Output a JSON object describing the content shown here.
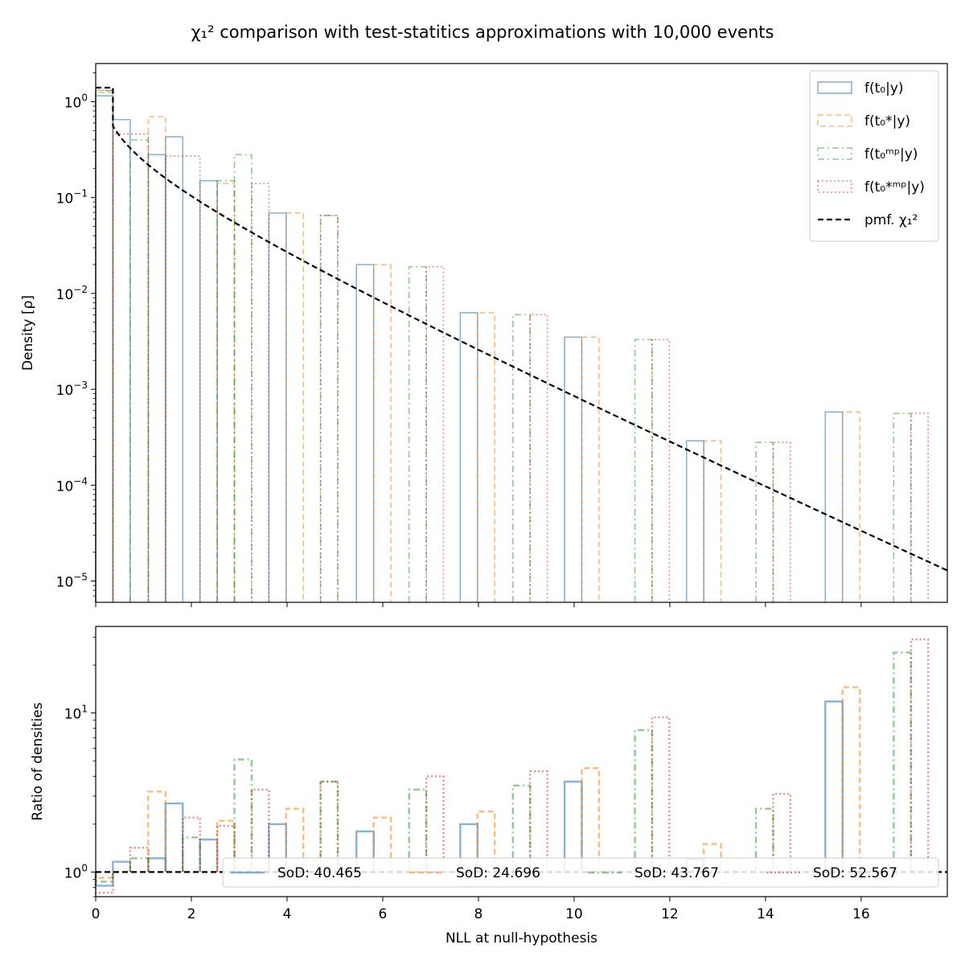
{
  "title": "χ₁² comparison with test-statitics approximations with 10,000 events",
  "colors": {
    "t0": "#1f77b4",
    "t0s": "#ff7f0e",
    "t0mp": "#2ca02c",
    "t0smp": "#d62728",
    "chi2": "#000000"
  },
  "chart_data": [
    {
      "type": "bar",
      "panel": "top",
      "ylabel": "Density [ρ]",
      "yscale": "log",
      "ylim": [
        6e-06,
        2.5
      ],
      "xlim": [
        0,
        17.8
      ],
      "yticks": [
        {
          "v": 1,
          "m": "0"
        },
        {
          "v": 0.1,
          "m": "−1"
        },
        {
          "v": 0.01,
          "m": "−2"
        },
        {
          "v": 0.001,
          "m": "−3"
        },
        {
          "v": 0.0001,
          "m": "−4"
        },
        {
          "v": 1e-05,
          "m": "−5"
        }
      ],
      "legend": {
        "location": "upper right",
        "entries": [
          {
            "key": "t0",
            "label": "f(t₀|y)"
          },
          {
            "key": "t0s",
            "label": "f(t₀*|y)"
          },
          {
            "key": "t0mp",
            "label": "f(t₀ᵐᵖ|y)"
          },
          {
            "key": "t0smp",
            "label": "f(t₀*ᵐᵖ|y)"
          },
          {
            "key": "chi2",
            "label": "pmf. χ₁²"
          }
        ]
      },
      "series": [
        {
          "key": "t0",
          "style": "solid",
          "bars": [
            [
              0,
              0.36,
              1.15
            ],
            [
              0.36,
              0.72,
              0.65
            ],
            [
              1.1,
              1.46,
              0.28
            ],
            [
              1.46,
              1.82,
              0.43
            ],
            [
              2.18,
              2.54,
              0.15
            ],
            [
              3.62,
              3.98,
              0.069
            ],
            [
              5.45,
              5.81,
              0.02
            ],
            [
              7.62,
              7.98,
              0.0063
            ],
            [
              9.8,
              10.16,
              0.0035
            ],
            [
              12.35,
              12.71,
              0.00029
            ],
            [
              15.25,
              15.61,
              0.00058
            ]
          ]
        },
        {
          "key": "t0s",
          "style": "dashed",
          "bars": [
            [
              0,
              0.36,
              1.25
            ],
            [
              1.1,
              1.46,
              0.7
            ],
            [
              2.54,
              2.9,
              0.14
            ],
            [
              3.98,
              4.34,
              0.069
            ],
            [
              5.81,
              6.17,
              0.02
            ],
            [
              7.98,
              8.34,
              0.0063
            ],
            [
              10.16,
              10.52,
              0.0035
            ],
            [
              12.71,
              13.07,
              0.00029
            ],
            [
              15.61,
              15.97,
              0.00058
            ]
          ]
        },
        {
          "key": "t0mp",
          "style": "dashdot",
          "bars": [
            [
              0,
              0.36,
              1.3
            ],
            [
              0.72,
              1.1,
              0.4
            ],
            [
              2.54,
              2.9,
              0.15
            ],
            [
              2.9,
              3.26,
              0.28
            ],
            [
              4.7,
              5.06,
              0.065
            ],
            [
              6.55,
              6.91,
              0.019
            ],
            [
              8.72,
              9.08,
              0.006
            ],
            [
              11.27,
              11.63,
              0.0033
            ],
            [
              13.8,
              14.16,
              0.00028
            ],
            [
              16.68,
              17.04,
              0.00056
            ]
          ]
        },
        {
          "key": "t0smp",
          "style": "dotted",
          "bars": [
            [
              0,
              0.36,
              1.32
            ],
            [
              0.36,
              1.1,
              0.46
            ],
            [
              1.46,
              2.18,
              0.27
            ],
            [
              3.26,
              3.62,
              0.14
            ],
            [
              4.7,
              5.06,
              0.065
            ],
            [
              6.91,
              7.27,
              0.019
            ],
            [
              9.08,
              9.44,
              0.006
            ],
            [
              11.63,
              11.99,
              0.0033
            ],
            [
              14.16,
              14.52,
              0.00028
            ],
            [
              17.04,
              17.4,
              0.00056
            ]
          ]
        }
      ]
    },
    {
      "type": "bar",
      "panel": "bottom",
      "xlabel": "NLL at null-hypothesis",
      "ylabel": "Ratio of densities",
      "yscale": "log",
      "ylim": [
        0.7,
        35
      ],
      "xlim": [
        0,
        17.8
      ],
      "xticks": [
        0,
        2,
        4,
        6,
        8,
        10,
        12,
        14,
        16
      ],
      "yticks": [
        {
          "v": 1,
          "m": "0"
        },
        {
          "v": 10,
          "m": "1"
        }
      ],
      "reference_line": 1.0,
      "legend": {
        "location": "lower right",
        "entries": [
          {
            "key": "t0",
            "label": "SoD: 40.465"
          },
          {
            "key": "t0s",
            "label": "SoD: 24.696"
          },
          {
            "key": "t0mp",
            "label": "SoD: 43.767"
          },
          {
            "key": "t0smp",
            "label": "SoD: 52.567"
          }
        ]
      },
      "series": [
        {
          "key": "t0",
          "style": "solid",
          "bars": [
            [
              0,
              0.36,
              0.82
            ],
            [
              0.36,
              0.72,
              1.16
            ],
            [
              1.1,
              1.46,
              1.22
            ],
            [
              1.46,
              1.82,
              2.7
            ],
            [
              2.18,
              2.54,
              1.6
            ],
            [
              3.62,
              3.98,
              2.0
            ],
            [
              5.45,
              5.81,
              1.8
            ],
            [
              7.62,
              7.98,
              2.0
            ],
            [
              9.8,
              10.16,
              3.7
            ],
            [
              12.35,
              12.71,
              1.2
            ],
            [
              15.25,
              15.61,
              11.8
            ]
          ]
        },
        {
          "key": "t0s",
          "style": "dashed",
          "bars": [
            [
              0,
              0.36,
              0.92
            ],
            [
              1.1,
              1.46,
              3.2
            ],
            [
              2.54,
              2.9,
              2.1
            ],
            [
              3.98,
              4.34,
              2.5
            ],
            [
              5.81,
              6.17,
              2.2
            ],
            [
              7.98,
              8.34,
              2.4
            ],
            [
              10.16,
              10.52,
              4.5
            ],
            [
              12.71,
              13.07,
              1.5
            ],
            [
              15.61,
              15.97,
              14.5
            ]
          ]
        },
        {
          "key": "t0mp",
          "style": "dashdot",
          "bars": [
            [
              0,
              0.36,
              0.87
            ],
            [
              0.72,
              1.1,
              1.22
            ],
            [
              1.82,
              2.18,
              1.65
            ],
            [
              2.9,
              3.26,
              5.1
            ],
            [
              4.7,
              5.06,
              3.7
            ],
            [
              6.55,
              6.91,
              3.3
            ],
            [
              8.72,
              9.08,
              3.5
            ],
            [
              11.27,
              11.63,
              7.8
            ],
            [
              13.8,
              14.16,
              2.5
            ],
            [
              16.68,
              17.04,
              24.0
            ]
          ]
        },
        {
          "key": "t0smp",
          "style": "dotted",
          "bars": [
            [
              0,
              0.36,
              0.74
            ],
            [
              0.72,
              1.1,
              1.42
            ],
            [
              1.82,
              2.18,
              2.2
            ],
            [
              2.54,
              2.9,
              1.95
            ],
            [
              3.26,
              3.62,
              3.3
            ],
            [
              4.7,
              5.06,
              3.7
            ],
            [
              6.91,
              7.27,
              4.0
            ],
            [
              9.08,
              9.44,
              4.3
            ],
            [
              11.63,
              11.99,
              9.4
            ],
            [
              14.16,
              14.52,
              3.1
            ],
            [
              17.04,
              17.4,
              29.0
            ]
          ]
        }
      ]
    }
  ]
}
